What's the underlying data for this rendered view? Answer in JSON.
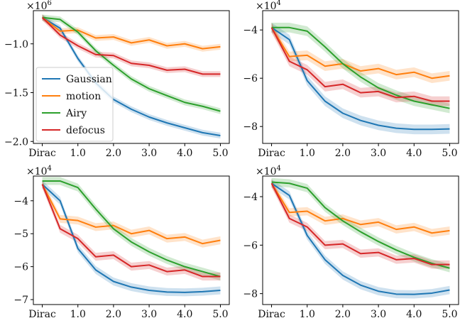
{
  "chart_data": [
    {
      "type": "line",
      "panel": "top-left",
      "multiplier": "×10",
      "multiplier_exp": "6",
      "categories": [
        "Dirac",
        "1.0",
        "2.0",
        "3.0",
        "4.0",
        "5.0"
      ],
      "x": [
        0,
        0.5,
        1.0,
        1.5,
        2.0,
        2.5,
        3.0,
        3.5,
        4.0,
        4.5,
        5.0
      ],
      "ylim": [
        -2.02,
        -0.66
      ],
      "yticks": [
        -1.0,
        -1.5,
        -2.0
      ],
      "ytick_labels": [
        "−1.0",
        "−1.5",
        "−2.0"
      ],
      "legend": {
        "position": "lower-left",
        "entries": [
          "Gaussian",
          "motion",
          "Airy",
          "defocus"
        ]
      },
      "band": 0.03,
      "series": [
        {
          "name": "Gaussian",
          "color": "#1f77b4",
          "values": [
            -0.73,
            -0.84,
            -1.15,
            -1.4,
            -1.57,
            -1.67,
            -1.75,
            -1.81,
            -1.86,
            -1.91,
            -1.94
          ]
        },
        {
          "name": "motion",
          "color": "#ff7f0e",
          "values": [
            -0.73,
            -0.87,
            -0.86,
            -0.94,
            -0.93,
            -0.99,
            -0.96,
            -1.02,
            -1.0,
            -1.05,
            -1.03
          ]
        },
        {
          "name": "Airy",
          "color": "#2ca02c",
          "values": [
            -0.73,
            -0.75,
            -0.88,
            -1.07,
            -1.22,
            -1.36,
            -1.46,
            -1.53,
            -1.6,
            -1.64,
            -1.69
          ]
        },
        {
          "name": "defocus",
          "color": "#d62728",
          "values": [
            -0.73,
            -0.91,
            -1.02,
            -1.11,
            -1.12,
            -1.2,
            -1.22,
            -1.27,
            -1.26,
            -1.31,
            -1.31
          ]
        }
      ]
    },
    {
      "type": "line",
      "panel": "top-right",
      "multiplier": "×10",
      "multiplier_exp": "4",
      "categories": [
        "Dirac",
        "1.0",
        "2.0",
        "3.0",
        "4.0",
        "5.0"
      ],
      "x": [
        0,
        0.5,
        1.0,
        1.5,
        2.0,
        2.5,
        3.0,
        3.5,
        4.0,
        4.5,
        5.0
      ],
      "ylim": [
        -8.7,
        -3.2
      ],
      "yticks": [
        -4,
        -6,
        -8
      ],
      "ytick_labels": [
        "−4",
        "−6",
        "−8"
      ],
      "band": 0.2,
      "series": [
        {
          "name": "Gaussian",
          "color": "#1f77b4",
          "values": [
            -3.9,
            -4.4,
            -6.1,
            -6.95,
            -7.45,
            -7.75,
            -7.95,
            -8.07,
            -8.12,
            -8.12,
            -8.1
          ]
        },
        {
          "name": "motion",
          "color": "#ff7f0e",
          "values": [
            -3.9,
            -5.1,
            -5.05,
            -5.5,
            -5.4,
            -5.7,
            -5.6,
            -5.85,
            -5.75,
            -6.0,
            -5.9
          ]
        },
        {
          "name": "Airy",
          "color": "#2ca02c",
          "values": [
            -3.9,
            -3.9,
            -4.05,
            -4.7,
            -5.4,
            -5.95,
            -6.4,
            -6.7,
            -6.95,
            -7.1,
            -7.25
          ]
        },
        {
          "name": "defocus",
          "color": "#d62728",
          "values": [
            -3.9,
            -5.3,
            -5.65,
            -6.35,
            -6.25,
            -6.6,
            -6.55,
            -6.8,
            -6.75,
            -6.95,
            -6.95
          ]
        }
      ]
    },
    {
      "type": "line",
      "panel": "bottom-left",
      "multiplier": "×10",
      "multiplier_exp": "4",
      "categories": [
        "Dirac",
        "1.0",
        "2.0",
        "3.0",
        "4.0",
        "5.0"
      ],
      "x": [
        0,
        0.5,
        1.0,
        1.5,
        2.0,
        2.5,
        3.0,
        3.5,
        4.0,
        4.5,
        5.0
      ],
      "ylim": [
        -7.15,
        -3.25
      ],
      "yticks": [
        -4,
        -5,
        -6,
        -7
      ],
      "ytick_labels": [
        "−4",
        "−5",
        "−6",
        "−7"
      ],
      "band": 0.12,
      "series": [
        {
          "name": "Gaussian",
          "color": "#1f77b4",
          "values": [
            -3.5,
            -4.0,
            -5.45,
            -6.1,
            -6.45,
            -6.62,
            -6.72,
            -6.77,
            -6.78,
            -6.76,
            -6.72
          ]
        },
        {
          "name": "motion",
          "color": "#ff7f0e",
          "values": [
            -3.5,
            -4.55,
            -4.6,
            -4.8,
            -4.75,
            -5.0,
            -4.9,
            -5.15,
            -5.1,
            -5.3,
            -5.2
          ]
        },
        {
          "name": "Airy",
          "color": "#2ca02c",
          "values": [
            -3.4,
            -3.4,
            -3.6,
            -4.25,
            -4.85,
            -5.25,
            -5.55,
            -5.8,
            -6.0,
            -6.15,
            -6.3
          ]
        },
        {
          "name": "defocus",
          "color": "#d62728",
          "values": [
            -3.5,
            -4.85,
            -5.15,
            -5.7,
            -5.65,
            -6.0,
            -5.95,
            -6.15,
            -6.1,
            -6.3,
            -6.3
          ]
        }
      ]
    },
    {
      "type": "line",
      "panel": "bottom-right",
      "multiplier": "×10",
      "multiplier_exp": "4",
      "categories": [
        "Dirac",
        "1.0",
        "2.0",
        "3.0",
        "4.0",
        "5.0"
      ],
      "x": [
        0,
        0.5,
        1.0,
        1.5,
        2.0,
        2.5,
        3.0,
        3.5,
        4.0,
        4.5,
        5.0
      ],
      "ylim": [
        -8.45,
        -3.15
      ],
      "yticks": [
        -4,
        -6,
        -8
      ],
      "ytick_labels": [
        "−4",
        "−6",
        "−8"
      ],
      "band": 0.17,
      "series": [
        {
          "name": "Gaussian",
          "color": "#1f77b4",
          "values": [
            -3.45,
            -3.95,
            -5.6,
            -6.6,
            -7.25,
            -7.65,
            -7.9,
            -8.02,
            -8.03,
            -7.98,
            -7.85
          ]
        },
        {
          "name": "motion",
          "color": "#ff7f0e",
          "values": [
            -3.45,
            -4.65,
            -4.6,
            -5.0,
            -4.9,
            -5.15,
            -5.05,
            -5.35,
            -5.25,
            -5.5,
            -5.4
          ]
        },
        {
          "name": "Airy",
          "color": "#2ca02c",
          "values": [
            -3.4,
            -3.45,
            -3.65,
            -4.45,
            -5.0,
            -5.45,
            -5.85,
            -6.2,
            -6.5,
            -6.75,
            -6.95
          ]
        },
        {
          "name": "defocus",
          "color": "#d62728",
          "values": [
            -3.45,
            -4.9,
            -5.25,
            -6.0,
            -5.95,
            -6.35,
            -6.3,
            -6.6,
            -6.55,
            -6.8,
            -6.8
          ]
        }
      ]
    }
  ]
}
